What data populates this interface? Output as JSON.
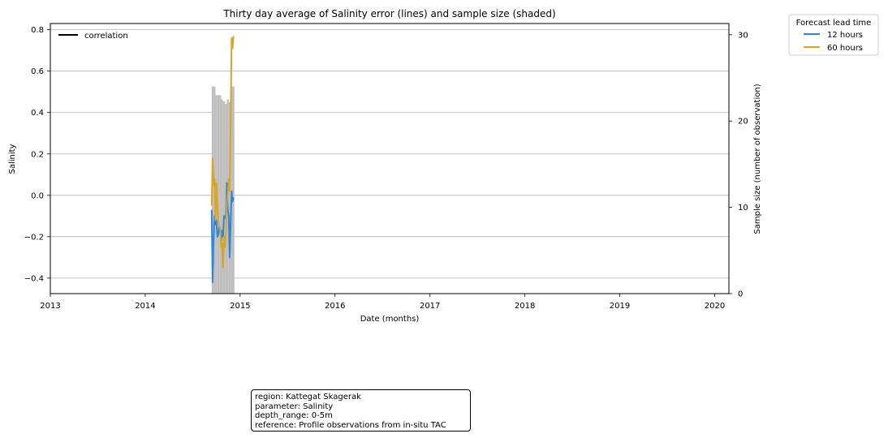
{
  "chart_data": {
    "type": "line",
    "title": "Thirty day average of Salinity error (lines) and sample size (shaded)",
    "xlabel": "Date (months)",
    "ylabel": "Salinity",
    "y2label": "Sample size (number of observation)",
    "xlim": [
      2013.0,
      2020.15
    ],
    "ylim": [
      -0.475,
      0.83
    ],
    "y2lim": [
      0,
      31.3
    ],
    "x_ticks": [
      2013,
      2014,
      2015,
      2016,
      2017,
      2018,
      2019,
      2020
    ],
    "y_ticks": [
      -0.4,
      -0.2,
      0.0,
      0.2,
      0.4,
      0.6,
      0.8
    ],
    "y_tick_labels": [
      "−0.4",
      "−0.2",
      "0.0",
      "0.2",
      "0.4",
      "0.6",
      "0.8"
    ],
    "y2_ticks": [
      0,
      10,
      20,
      30
    ],
    "grid": "horizontal",
    "legend_top_left": [
      "correlation"
    ],
    "legend": {
      "title": "Forecast lead time",
      "placement": "outside-top-right",
      "entries": [
        "12 hours",
        "60 hours"
      ]
    },
    "series": [
      {
        "name": "12 hours",
        "color": "#2e86de",
        "x": [
          2014.7,
          2014.71,
          2014.72,
          2014.73,
          2014.74,
          2014.75,
          2014.76,
          2014.77,
          2014.78,
          2014.79,
          2014.8,
          2014.81,
          2014.82,
          2014.83,
          2014.84,
          2014.85,
          2014.86,
          2014.87,
          2014.88,
          2014.89,
          2014.9,
          2014.91,
          2014.92,
          2014.93
        ],
        "y": [
          -0.07,
          -0.42,
          -0.22,
          -0.1,
          -0.14,
          -0.12,
          -0.2,
          -0.19,
          -0.15,
          -0.17,
          -0.22,
          -0.17,
          -0.2,
          -0.1,
          -0.11,
          -0.1,
          0.06,
          -0.07,
          -0.1,
          -0.3,
          -0.13,
          0.02,
          -0.03,
          -0.01
        ]
      },
      {
        "name": "60 hours",
        "color": "#daa520",
        "x": [
          2014.7,
          2014.71,
          2014.72,
          2014.73,
          2014.74,
          2014.75,
          2014.76,
          2014.77,
          2014.78,
          2014.79,
          2014.8,
          2014.81,
          2014.82,
          2014.83,
          2014.84,
          2014.85,
          2014.86,
          2014.87,
          2014.88,
          2014.89,
          2014.9,
          2014.91,
          2014.92,
          2014.93
        ],
        "y": [
          -0.05,
          0.18,
          0.05,
          0.08,
          -0.12,
          0.06,
          -0.05,
          -0.13,
          -0.15,
          -0.16,
          -0.25,
          -0.23,
          -0.35,
          -0.2,
          -0.25,
          -0.18,
          -0.03,
          0.01,
          0.08,
          0.02,
          0.35,
          0.76,
          0.71,
          0.77
        ]
      }
    ],
    "sample_size": {
      "name": "sample size",
      "color": "#bfbfbf",
      "x_start": [
        2014.7,
        2014.72,
        2014.74,
        2014.76,
        2014.78,
        2014.8,
        2014.82,
        2014.84,
        2014.86,
        2014.88,
        2014.9,
        2014.92
      ],
      "x_end": [
        2014.72,
        2014.74,
        2014.76,
        2014.78,
        2014.8,
        2014.82,
        2014.84,
        2014.86,
        2014.88,
        2014.9,
        2014.92,
        2014.94
      ],
      "values": [
        24,
        24,
        23,
        23,
        23,
        22.5,
        22.3,
        22,
        22.5,
        22.2,
        24,
        24
      ]
    }
  },
  "info": {
    "region": "region: Kattegat Skagerak",
    "parameter": "parameter: Salinity",
    "depth_range": "depth_range: 0-5m",
    "reference": "reference: Profile observations from in-situ TAC"
  }
}
